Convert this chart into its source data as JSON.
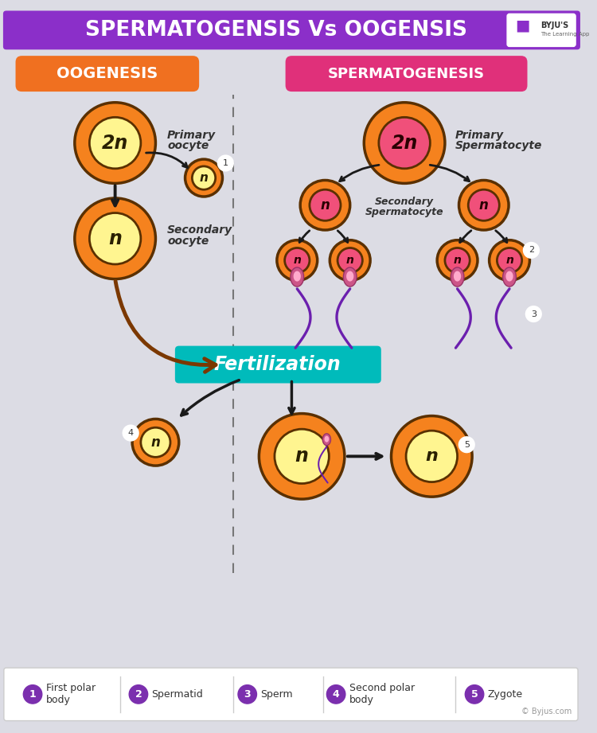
{
  "title": "SPERMATOGENSIS Vs OOGENSIS",
  "bg_color": "#dcdce4",
  "header_bg": "#8B2FC9",
  "oogenesis_label": "OOGENESIS",
  "oogenesis_color": "#F07020",
  "spermatogenesis_label": "SPERMATOGENESIS",
  "spermatogenesis_color": "#E0307A",
  "fertilization_label": "Fertilization",
  "fertilization_color": "#00BBBB",
  "legend_items": [
    {
      "num": "1",
      "label": "First polar\nbody"
    },
    {
      "num": "2",
      "label": "Spermatid"
    },
    {
      "num": "3",
      "label": "Sperm"
    },
    {
      "num": "4",
      "label": "Second polar\nbody"
    },
    {
      "num": "5",
      "label": "Zygote"
    }
  ],
  "legend_circle_color": "#7B2FAE",
  "copyright": "© Byjus.com",
  "outer_orange": "#F5821E",
  "inner_yellow_light": "#FFF590",
  "pink_outer": "#F0507A",
  "brown_arrow": "#7B3800",
  "sperm_tail": "#6B1FAE"
}
